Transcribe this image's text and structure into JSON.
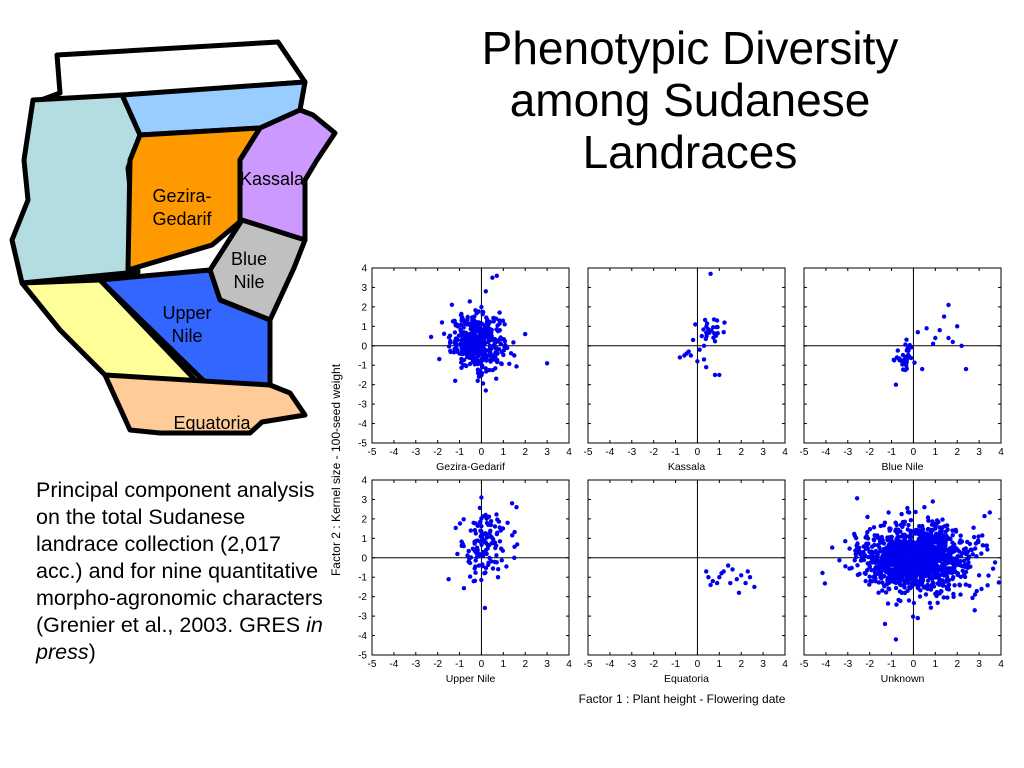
{
  "title": {
    "line1": "Phenotypic Diversity",
    "line2": "among Sudanese",
    "line3": "Landraces"
  },
  "caption": {
    "text": "Principal component analysis on the total Sudanese landrace collection (2,017 acc.) and for nine quantitative morpho-agronomic characters (Grenier et al., 2003. GRES ",
    "italic": "in press",
    "close": ")"
  },
  "map": {
    "regions": [
      {
        "name": "Gezira-Gedarif",
        "lines": [
          "Gezira-",
          "Gedarif"
        ],
        "color": "#ff9900"
      },
      {
        "name": "Kassala",
        "lines": [
          "Kassala"
        ],
        "color": "#cc99ff"
      },
      {
        "name": "Blue Nile",
        "lines": [
          "Blue",
          "Nile"
        ],
        "color": "#c0c0c0"
      },
      {
        "name": "Upper Nile",
        "lines": [
          "Upper",
          "Nile"
        ],
        "color": "#3366ff"
      },
      {
        "name": "Equatoria",
        "lines": [
          "Equatoria"
        ],
        "color": "#ffcc99"
      }
    ],
    "other_colors": {
      "northern": "#ffffff",
      "north_band": "#99ccff",
      "western": "#b3dde0",
      "southwest": "#ffff99"
    }
  },
  "chart_data": {
    "type": "scatter",
    "xlabel": "Factor 1 : Plant height - Flowering date",
    "ylabel": "Factor 2 : Kernel size - 100-seed weight",
    "xlim": [
      -5,
      4
    ],
    "ylim": [
      -5,
      4
    ],
    "xticks": [
      -5,
      -4,
      -3,
      -2,
      -1,
      0,
      1,
      2,
      3,
      4
    ],
    "yticks": [
      4,
      3,
      2,
      1,
      0,
      -1,
      -2,
      -3,
      -4,
      -5
    ],
    "point_color": "#0000ee",
    "panels": [
      {
        "name": "Gezira-Gedarif",
        "center": [
          -0.2,
          0.2
        ],
        "spread": [
          0.6,
          0.7
        ],
        "n": 420,
        "extra": [
          [
            0.5,
            3.5
          ],
          [
            0.7,
            3.6
          ],
          [
            0.2,
            2.8
          ],
          [
            3.0,
            -0.9
          ],
          [
            2.0,
            0.6
          ],
          [
            -1.2,
            -1.8
          ],
          [
            0.2,
            -2.3
          ],
          [
            -1.8,
            1.2
          ],
          [
            1.5,
            -0.5
          ]
        ]
      },
      {
        "name": "Kassala",
        "center": [
          0.6,
          0.8
        ],
        "spread": [
          0.25,
          0.35
        ],
        "n": 20,
        "extra": [
          [
            0.6,
            3.7
          ],
          [
            -0.3,
            -0.5
          ],
          [
            0.0,
            -0.8
          ],
          [
            -0.6,
            -0.5
          ],
          [
            -0.8,
            -0.6
          ],
          [
            -0.2,
            0.3
          ],
          [
            0.3,
            -0.7
          ],
          [
            0.1,
            -0.2
          ],
          [
            -0.4,
            -0.3
          ],
          [
            0.8,
            -1.5
          ],
          [
            1.0,
            -1.5
          ],
          [
            0.4,
            -1.1
          ],
          [
            -0.1,
            1.1
          ],
          [
            0.9,
            1.3
          ],
          [
            0.2,
            0.5
          ],
          [
            -0.5,
            -0.4
          ],
          [
            0.3,
            0.0
          ],
          [
            1.2,
            0.7
          ]
        ]
      },
      {
        "name": "Blue Nile",
        "center": [
          -0.3,
          -0.5
        ],
        "spread": [
          0.3,
          0.4
        ],
        "n": 38,
        "extra": [
          [
            1.4,
            1.5
          ],
          [
            1.6,
            2.1
          ],
          [
            2.4,
            -1.2
          ],
          [
            1.2,
            0.8
          ],
          [
            1.8,
            0.2
          ],
          [
            0.6,
            0.9
          ],
          [
            1.0,
            0.4
          ],
          [
            2.0,
            1.0
          ],
          [
            -0.8,
            -2.0
          ],
          [
            0.4,
            -1.2
          ],
          [
            0.2,
            0.7
          ],
          [
            2.2,
            0.0
          ],
          [
            1.6,
            0.4
          ],
          [
            0.9,
            0.1
          ]
        ]
      },
      {
        "name": "Upper Nile",
        "center": [
          0.1,
          0.6
        ],
        "spread": [
          0.55,
          0.95
        ],
        "n": 130,
        "extra": [
          [
            -1.5,
            -1.1
          ],
          [
            1.6,
            2.6
          ],
          [
            1.4,
            2.8
          ],
          [
            0.0,
            3.1
          ],
          [
            -1.1,
            0.2
          ],
          [
            1.5,
            0.0
          ]
        ]
      },
      {
        "name": "Equatoria",
        "center": [
          1.6,
          -1.0
        ],
        "spread": [
          0.5,
          0.3
        ],
        "n": 0,
        "extra": [
          [
            0.4,
            -0.7
          ],
          [
            0.6,
            -1.4
          ],
          [
            0.7,
            -1.2
          ],
          [
            1.0,
            -1.0
          ],
          [
            1.2,
            -0.7
          ],
          [
            1.4,
            -0.4
          ],
          [
            1.6,
            -0.6
          ],
          [
            1.8,
            -1.1
          ],
          [
            2.0,
            -0.9
          ],
          [
            2.2,
            -1.3
          ],
          [
            2.6,
            -1.5
          ],
          [
            1.5,
            -1.3
          ],
          [
            1.9,
            -1.8
          ],
          [
            2.4,
            -1.0
          ],
          [
            1.1,
            -0.8
          ],
          [
            0.9,
            -1.3
          ],
          [
            2.3,
            -0.7
          ],
          [
            0.5,
            -1.0
          ]
        ]
      },
      {
        "name": "Unknown",
        "center": [
          0.1,
          0.0
        ],
        "spread": [
          1.2,
          0.85
        ],
        "n": 1300,
        "extra": [
          [
            -0.8,
            -4.2
          ],
          [
            2.8,
            -2.7
          ],
          [
            -1.3,
            -3.4
          ],
          [
            0.2,
            -3.1
          ],
          [
            3.0,
            -0.9
          ],
          [
            -2.1,
            2.1
          ],
          [
            0.5,
            2.6
          ]
        ]
      }
    ]
  }
}
